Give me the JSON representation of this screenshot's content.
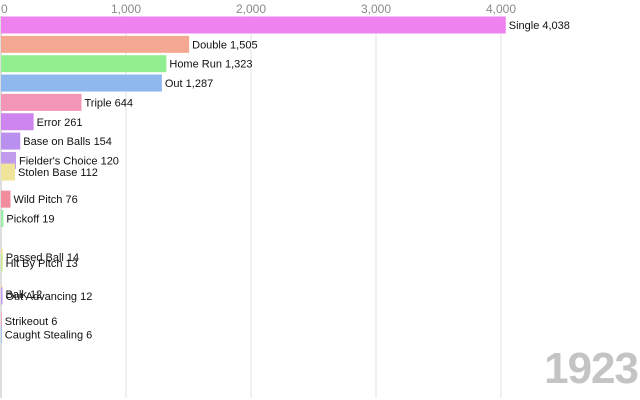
{
  "chart_data": {
    "type": "bar",
    "orientation": "horizontal",
    "title": "",
    "xlabel": "",
    "ylabel": "",
    "xlim": [
      0,
      5000
    ],
    "xticks": [
      0,
      1000,
      2000,
      3000,
      4000
    ],
    "xtick_labels": [
      "0",
      "1,000",
      "2,000",
      "3,000",
      "4,000"
    ],
    "grid": true,
    "period_label": "1923",
    "categories": [
      "Single",
      "Double",
      "Home Run",
      "Out",
      "Triple",
      "Error",
      "Base on Balls",
      "Fielder's Choice",
      "Stolen Base",
      "Wild Pitch",
      "Pickoff",
      "Passed Ball",
      "Hit By Pitch",
      "Balk",
      "Out Advancing",
      "Strikeout",
      "Caught Stealing"
    ],
    "values": [
      4038,
      1505,
      1323,
      1287,
      644,
      261,
      154,
      120,
      112,
      76,
      19,
      14,
      13,
      12,
      12,
      6,
      6
    ],
    "value_labels": [
      "4,038",
      "1,505",
      "1,323",
      "1,287",
      "644",
      "261",
      "154",
      "120",
      "112",
      "76",
      "19",
      "14",
      "13",
      "12",
      "12",
      "6",
      "6"
    ],
    "rank_positions": [
      1,
      2,
      3,
      4,
      5,
      6,
      7,
      8,
      8.6,
      10,
      11,
      13,
      13.3,
      14.9,
      15,
      16.3,
      17
    ],
    "colors": [
      "#ee82ee",
      "#f4a891",
      "#90ee90",
      "#8fb8ee",
      "#f395b6",
      "#cd84ee",
      "#b98ff0",
      "#c29aee",
      "#f0e49a",
      "#f28d9e",
      "#98eea6",
      "#f0e49a",
      "#c8ee90",
      "#f0e49a",
      "#c29aee",
      "#f395b6",
      "#8fb8ee"
    ]
  }
}
